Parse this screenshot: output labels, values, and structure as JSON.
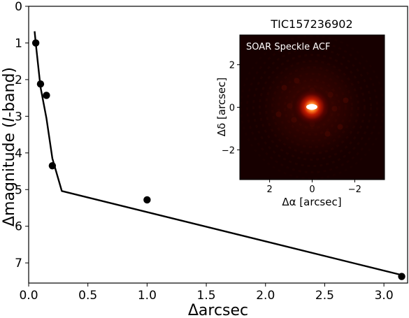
{
  "chart_data": [
    {
      "type": "line",
      "title": "",
      "xlabel": "Δarcsec",
      "ylabel_parts": [
        "Δmagnitude (",
        "I",
        "-band)"
      ],
      "xlim": [
        0.0,
        3.2
      ],
      "ylim": [
        7.55,
        0.0
      ],
      "y_inverted": true,
      "xticks": [
        0.0,
        0.5,
        1.0,
        1.5,
        2.0,
        2.5,
        3.0
      ],
      "xtick_labels": [
        "0.0",
        "0.5",
        "1.0",
        "1.5",
        "2.0",
        "2.5",
        "3.0"
      ],
      "yticks": [
        0,
        1,
        2,
        3,
        4,
        5,
        6,
        7
      ],
      "ytick_labels": [
        "0",
        "1",
        "2",
        "3",
        "4",
        "5",
        "6",
        "7"
      ],
      "series": [
        {
          "kind": "line",
          "color": "#000000",
          "x": [
            0.05,
            0.06,
            0.1,
            0.15,
            0.2,
            0.28,
            3.15
          ],
          "y": [
            0.68,
            1.02,
            2.2,
            3.05,
            4.15,
            5.04,
            7.33
          ]
        },
        {
          "kind": "scatter",
          "color": "#000000",
          "x": [
            0.06,
            0.1,
            0.15,
            0.2,
            1.0,
            3.15
          ],
          "y": [
            1.0,
            2.12,
            2.43,
            4.35,
            5.28,
            7.37
          ]
        }
      ],
      "grid": false
    },
    {
      "type": "heatmap",
      "title": "TIC157236902",
      "annotation": "SOAR Speckle ACF",
      "xlabel": "Δα [arcsec]",
      "ylabel": "Δδ [arcsec]",
      "xlim": [
        3.4,
        -3.4
      ],
      "ylim": [
        -3.4,
        3.4
      ],
      "xticks": [
        2,
        0,
        -2
      ],
      "xtick_labels": [
        "2",
        "0",
        "−2"
      ],
      "yticks": [
        2,
        0,
        -2
      ],
      "ytick_labels": [
        "2",
        "0",
        "−2"
      ],
      "colormap": [
        "#000000",
        "#3a0000",
        "#8a0a00",
        "#d42000",
        "#ff6a1a",
        "#ffd08a",
        "#ffffff"
      ],
      "background": "#170000",
      "grid": false
    }
  ]
}
